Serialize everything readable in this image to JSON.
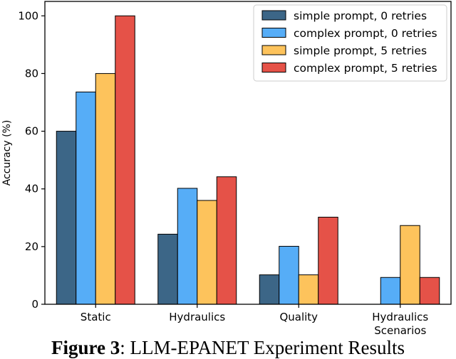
{
  "caption": {
    "label": "Figure 3",
    "text": ": LLM-EPANET Experiment Results"
  },
  "chart_data": {
    "type": "bar",
    "categories": [
      "Static",
      "Hydraulics",
      "Quality",
      "Hydraulics\nScenarios"
    ],
    "series": [
      {
        "name": "simple prompt, 0 retries",
        "color": "#3c6687",
        "values": [
          60,
          24.3,
          10.2,
          0
        ]
      },
      {
        "name": "complex prompt, 0 retries",
        "color": "#56adf7",
        "values": [
          73.6,
          40.2,
          20.1,
          9.3
        ]
      },
      {
        "name": "simple prompt, 5 retries",
        "color": "#fdc35c",
        "values": [
          80.0,
          36.0,
          10.2,
          27.3
        ]
      },
      {
        "name": "complex prompt, 5 retries",
        "color": "#e55248",
        "values": [
          100,
          44.2,
          30.2,
          9.3
        ]
      }
    ],
    "ylabel": "Accuracy (%)",
    "xlabel": "",
    "ylim": [
      0,
      105
    ],
    "yticks": [
      0,
      20,
      40,
      60,
      80,
      100
    ],
    "grid": false,
    "legend": "top-right"
  }
}
